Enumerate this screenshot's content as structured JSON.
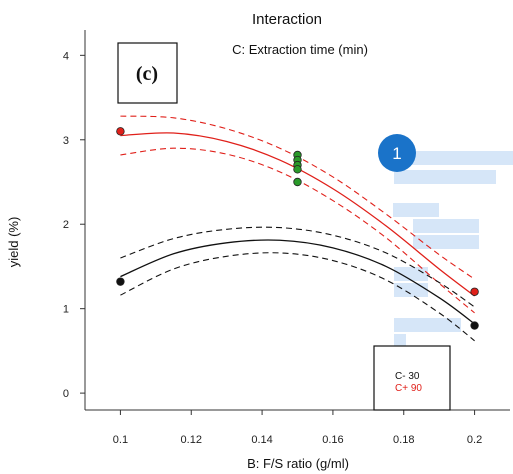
{
  "chart_data": {
    "type": "line",
    "title": "Interaction",
    "subtitle": "C: Extraction time (min)",
    "panel_label": "(c)",
    "xlabel": "B: F/S ratio (g/ml)",
    "ylabel": "yield (%)",
    "xlim": [
      0.09,
      0.21
    ],
    "ylim": [
      -0.2,
      4.3
    ],
    "x_ticks": [
      "0.1",
      "0.12",
      "0.14",
      "0.16",
      "0.18",
      "0.2"
    ],
    "y_ticks": [
      "0",
      "1",
      "2",
      "3",
      "4"
    ],
    "series": [
      {
        "name": "C+ 90",
        "color": "#e0201a",
        "style": "solid",
        "x": [
          0.1,
          0.115,
          0.13,
          0.145,
          0.16,
          0.175,
          0.19,
          0.2
        ],
        "values": [
          3.05,
          3.08,
          2.98,
          2.76,
          2.42,
          1.98,
          1.47,
          1.15
        ]
      },
      {
        "name": "C+ 90 CI upper",
        "color": "#e0201a",
        "style": "dashed",
        "x": [
          0.1,
          0.115,
          0.13,
          0.145,
          0.16,
          0.175,
          0.19,
          0.2
        ],
        "values": [
          3.28,
          3.26,
          3.13,
          2.9,
          2.56,
          2.12,
          1.64,
          1.35
        ]
      },
      {
        "name": "C+ 90 CI lower",
        "color": "#e0201a",
        "style": "dashed",
        "x": [
          0.1,
          0.115,
          0.13,
          0.145,
          0.16,
          0.175,
          0.19,
          0.2
        ],
        "values": [
          2.82,
          2.9,
          2.83,
          2.62,
          2.28,
          1.84,
          1.3,
          0.95
        ]
      },
      {
        "name": "C- 30",
        "color": "#111111",
        "style": "solid",
        "x": [
          0.1,
          0.115,
          0.13,
          0.145,
          0.16,
          0.175,
          0.19,
          0.2
        ],
        "values": [
          1.38,
          1.65,
          1.78,
          1.81,
          1.72,
          1.5,
          1.13,
          0.82
        ]
      },
      {
        "name": "C- 30 CI upper",
        "color": "#111111",
        "style": "dashed",
        "x": [
          0.1,
          0.115,
          0.13,
          0.145,
          0.16,
          0.175,
          0.19,
          0.2
        ],
        "values": [
          1.6,
          1.83,
          1.94,
          1.96,
          1.87,
          1.66,
          1.31,
          1.02
        ]
      },
      {
        "name": "C- 30 CI lower",
        "color": "#111111",
        "style": "dashed",
        "x": [
          0.1,
          0.115,
          0.13,
          0.145,
          0.16,
          0.175,
          0.19,
          0.2
        ],
        "values": [
          1.16,
          1.47,
          1.62,
          1.66,
          1.57,
          1.34,
          0.95,
          0.62
        ]
      }
    ],
    "points": [
      {
        "x": 0.1,
        "y": 3.1,
        "color": "#e0201a"
      },
      {
        "x": 0.1,
        "y": 1.32,
        "color": "#111111"
      },
      {
        "x": 0.15,
        "y": 2.82,
        "color": "#2a9a2a"
      },
      {
        "x": 0.15,
        "y": 2.76,
        "color": "#2a9a2a"
      },
      {
        "x": 0.15,
        "y": 2.7,
        "color": "#2a9a2a"
      },
      {
        "x": 0.15,
        "y": 2.65,
        "color": "#2a9a2a"
      },
      {
        "x": 0.15,
        "y": 2.5,
        "color": "#2a9a2a"
      },
      {
        "x": 0.2,
        "y": 1.2,
        "color": "#e0201a"
      },
      {
        "x": 0.2,
        "y": 0.8,
        "color": "#111111"
      }
    ],
    "legend": {
      "placement": "bottom-right",
      "items": [
        {
          "label": "C- 30",
          "color": "#111111"
        },
        {
          "label": "C+ 90",
          "color": "#e0201a"
        }
      ]
    },
    "grid": false
  },
  "overlay": {
    "badge_number": "1",
    "badge_color": "#1a73c9",
    "highlight_color": "#cfe2f7"
  }
}
